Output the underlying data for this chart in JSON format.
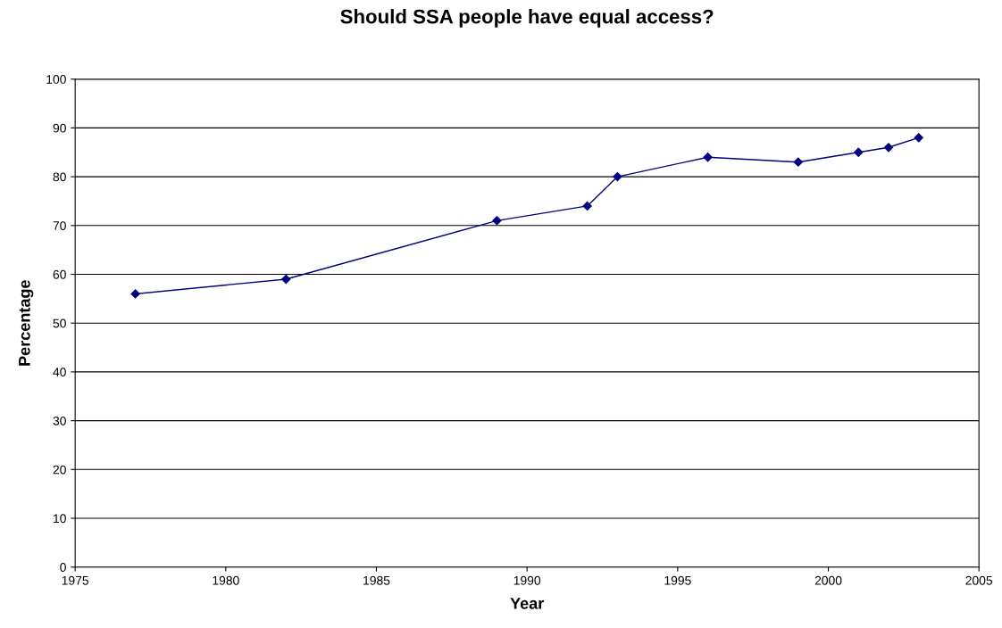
{
  "chart_data": {
    "type": "line",
    "title": "Should SSA people have equal access?",
    "xlabel": "Year",
    "ylabel": "Percentage",
    "x": [
      1977,
      1982,
      1989,
      1992,
      1993,
      1996,
      1999,
      2001,
      2002,
      2003
    ],
    "series": [
      {
        "color": "#000080",
        "values": [
          56,
          59,
          71,
          74,
          80,
          84,
          83,
          85,
          86,
          88
        ]
      }
    ],
    "xlim": [
      1975,
      2005
    ],
    "xticks": [
      1975,
      1980,
      1985,
      1990,
      1995,
      2000,
      2005
    ],
    "ylim": [
      0,
      100
    ],
    "yticks": [
      0,
      10,
      20,
      30,
      40,
      50,
      60,
      70,
      80,
      90,
      100
    ],
    "grid": "y",
    "marker": "diamond",
    "line_style": "solid"
  }
}
